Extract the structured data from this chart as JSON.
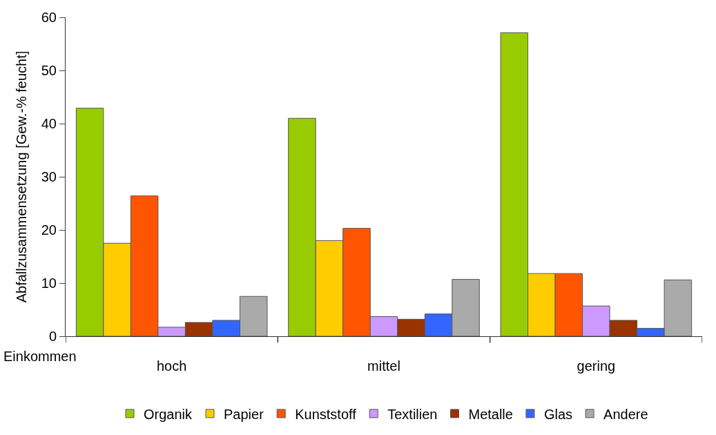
{
  "chart_data": {
    "type": "bar",
    "ylabel": "Abfallzusammensetzung [Gew.-% feucht]",
    "categories": [
      "hoch",
      "mittel",
      "gering"
    ],
    "series": [
      {
        "name": "Organik",
        "color": "#99cc00",
        "values": [
          42.9,
          41.0,
          57.1
        ]
      },
      {
        "name": "Papier",
        "color": "#ffcc00",
        "values": [
          17.5,
          18.0,
          11.8
        ]
      },
      {
        "name": "Kunststoff",
        "color": "#ff5500",
        "values": [
          26.4,
          20.3,
          11.8
        ]
      },
      {
        "name": "Textilien",
        "color": "#cc99ff",
        "values": [
          1.7,
          3.7,
          5.7
        ]
      },
      {
        "name": "Metalle",
        "color": "#993300",
        "values": [
          2.6,
          3.2,
          3.0
        ]
      },
      {
        "name": "Glas",
        "color": "#3366ff",
        "values": [
          3.0,
          4.2,
          1.5
        ]
      },
      {
        "name": "Andere",
        "color": "#aaaaaa",
        "values": [
          7.5,
          10.7,
          10.6
        ]
      }
    ],
    "ylim": [
      0,
      60
    ],
    "yticks": [
      0,
      10,
      20,
      30,
      40,
      50,
      60
    ],
    "annotations": [
      "Einkommen"
    ],
    "legend": "bottom"
  }
}
